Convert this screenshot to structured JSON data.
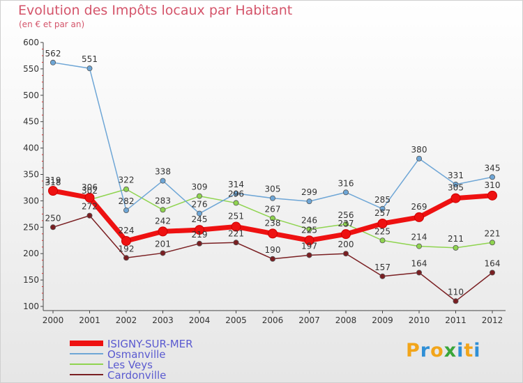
{
  "title": "Evolution des Impôts locaux par Habitant",
  "subtitle": "(en € et par an)",
  "logo": {
    "text": "Proxiti",
    "letters": [
      {
        "ch": "P",
        "color": "#f2a51a"
      },
      {
        "ch": "r",
        "color": "#2f8fd6"
      },
      {
        "ch": "o",
        "color": "#f2a51a"
      },
      {
        "ch": "x",
        "color": "#3aa63a"
      },
      {
        "ch": "i",
        "color": "#2f8fd6"
      },
      {
        "ch": "t",
        "color": "#f2a51a"
      },
      {
        "ch": "i",
        "color": "#2f8fd6"
      }
    ]
  },
  "chart_data": {
    "type": "line",
    "title": "Evolution des Impôts locaux par Habitant",
    "subtitle": "(en € et par an)",
    "xlabel": "",
    "ylabel": "",
    "x": [
      "2000",
      "2001",
      "2002",
      "2003",
      "2004",
      "2005",
      "2006",
      "2007",
      "2008",
      "2009",
      "2010",
      "2011",
      "2012"
    ],
    "ylim": [
      100,
      600
    ],
    "yticks": [
      100,
      150,
      200,
      250,
      300,
      350,
      400,
      450,
      500,
      550,
      600
    ],
    "grid": false,
    "legend_position": "bottom-left",
    "series": [
      {
        "name": "Cardonville",
        "color": "#7a1f22",
        "emphasis": false,
        "values": [
          250,
          272,
          192,
          201,
          219,
          221,
          190,
          197,
          200,
          157,
          164,
          110,
          164
        ],
        "labels": [
          "250",
          "272",
          "192",
          "201",
          "219",
          "221",
          "190",
          "197",
          "200",
          "157",
          "164",
          "110",
          "164"
        ]
      },
      {
        "name": "Les Veys",
        "color": "#8fd44f",
        "emphasis": false,
        "values": [
          318,
          302,
          322,
          283,
          309,
          296,
          267,
          246,
          256,
          225,
          214,
          211,
          221
        ],
        "labels": [
          "318",
          "302",
          "322",
          "283",
          "309",
          "296",
          "267",
          "246",
          "256",
          "225",
          "214",
          "211",
          "221"
        ]
      },
      {
        "name": "Osmanville",
        "color": "#6ea6d6",
        "emphasis": false,
        "values": [
          562,
          551,
          282,
          338,
          276,
          314,
          305,
          299,
          316,
          285,
          380,
          331,
          345
        ],
        "labels": [
          "562",
          "551",
          "282",
          "338",
          "276",
          "314",
          "305",
          "299",
          "316",
          "285",
          "380",
          "331",
          "345"
        ]
      },
      {
        "name": "ISIGNY-SUR-MER",
        "color": "#ee1111",
        "emphasis": true,
        "values": [
          319,
          306,
          224,
          242,
          245,
          251,
          238,
          225,
          237,
          257,
          269,
          305,
          310
        ],
        "labels": [
          "319",
          "306",
          "224",
          "242",
          "245",
          "251",
          "238",
          "225",
          "237",
          "257",
          "269",
          "305",
          "310"
        ]
      }
    ],
    "legend": [
      "ISIGNY-SUR-MER",
      "Osmanville",
      "Les Veys",
      "Cardonville"
    ]
  }
}
